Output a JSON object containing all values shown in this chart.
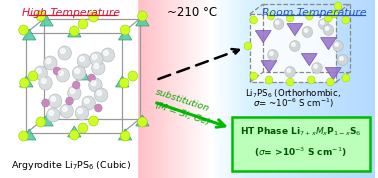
{
  "title": "~210 °C",
  "left_title": "High Temperature",
  "right_title": "Room Temperature",
  "left_label": "Argyrodite Li₇PS₆ (Cubic)",
  "right_label1": "Li₇PS₆ (Orthorhombic,",
  "right_label2": "σ= ~10⁻⁶ S cm⁻¹)",
  "box_label1": "HT Phase Li₇₊xMxP₁₋xS₆",
  "box_label2": "(σ= >10⁻³ S cm⁻¹)",
  "subst_label1": "substitution",
  "subst_label2": "(M = Si, Ge)",
  "left_title_color": "#dd1133",
  "right_title_color": "#2255cc",
  "green_color": "#00bb00",
  "black": "#000000"
}
